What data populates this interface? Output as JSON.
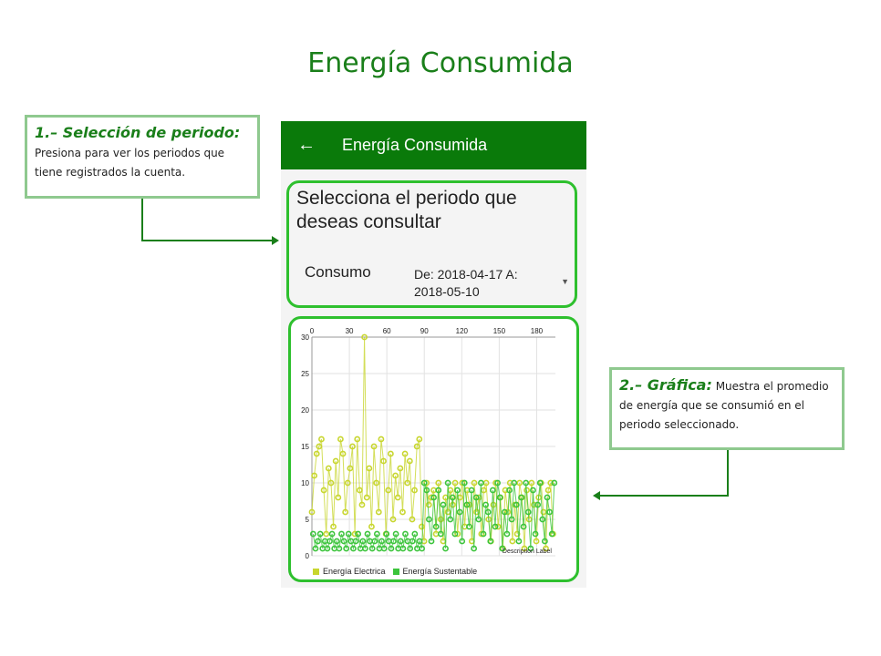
{
  "slide": {
    "title": "Energía Consumida"
  },
  "callouts": [
    {
      "title": "1.– Selección de periodo:",
      "text": "Presiona para ver los periodos que tiene registrados la cuenta."
    },
    {
      "title": "2.– Gráfica:",
      "text": "Muestra el promedio de energía que se consumió en el periodo seleccionado."
    }
  ],
  "app": {
    "appbar_title": "Energía Consumida",
    "back_icon": "arrow-back-icon",
    "period_heading": "Selecciona el periodo que deseas consultar",
    "period_label": "Consumo",
    "period_value": "De: 2018-04-17 A: 2018-05-10",
    "dropdown_icon": "dropdown-triangle-icon"
  },
  "colors": {
    "primary": "#0a7a0a",
    "accent": "#2ec02e",
    "series1": "#c8d62e",
    "series2": "#3cc43c"
  },
  "chart_data": {
    "type": "line",
    "x_axis_position": "top",
    "xlim": [
      0,
      195
    ],
    "ylim": [
      0,
      30
    ],
    "x_ticks": [
      0,
      30,
      60,
      90,
      120,
      150,
      180
    ],
    "y_ticks": [
      0,
      5,
      10,
      15,
      20,
      25,
      30
    ],
    "description_label": "Description Label",
    "grid": true,
    "legend_position": "bottom-left",
    "series": [
      {
        "name": "Energía Electrica",
        "color": "#c8d62e",
        "values": [
          6,
          11,
          14,
          15,
          16,
          9,
          3,
          12,
          10,
          4,
          13,
          8,
          16,
          14,
          6,
          10,
          12,
          15,
          3,
          16,
          9,
          7,
          30,
          8,
          12,
          4,
          15,
          10,
          6,
          16,
          13,
          3,
          9,
          14,
          5,
          11,
          8,
          12,
          6,
          14,
          10,
          13,
          5,
          9,
          15,
          16,
          4,
          2,
          10,
          7,
          8,
          9,
          3,
          10,
          5,
          2,
          8,
          6,
          9,
          7,
          10,
          3,
          8,
          10,
          4,
          9,
          7,
          2,
          10,
          6,
          8,
          3,
          9,
          10,
          5,
          2,
          7,
          10,
          4,
          8,
          1,
          9,
          6,
          10,
          2,
          7,
          3,
          10,
          8,
          1,
          9,
          5,
          10,
          7,
          2,
          8,
          10,
          6,
          1,
          9,
          10,
          3
        ]
      },
      {
        "name": "Energía Sustentable",
        "color": "#3cc43c",
        "values": [
          3,
          1,
          2,
          3,
          1,
          2,
          1,
          2,
          3,
          1,
          2,
          1,
          3,
          2,
          1,
          3,
          2,
          1,
          2,
          3,
          1,
          2,
          1,
          3,
          2,
          1,
          2,
          3,
          1,
          2,
          1,
          3,
          2,
          1,
          2,
          3,
          1,
          2,
          1,
          3,
          2,
          1,
          2,
          3,
          1,
          2,
          1,
          10,
          9,
          5,
          2,
          8,
          4,
          9,
          3,
          7,
          1,
          10,
          5,
          8,
          3,
          9,
          6,
          2,
          10,
          7,
          4,
          9,
          1,
          8,
          5,
          10,
          3,
          7,
          6,
          2,
          9,
          4,
          10,
          8,
          1,
          6,
          3,
          9,
          5,
          10,
          7,
          2,
          8,
          4,
          10,
          6,
          1,
          9,
          3,
          7,
          10,
          5,
          2,
          8,
          6,
          3,
          10
        ]
      }
    ]
  }
}
